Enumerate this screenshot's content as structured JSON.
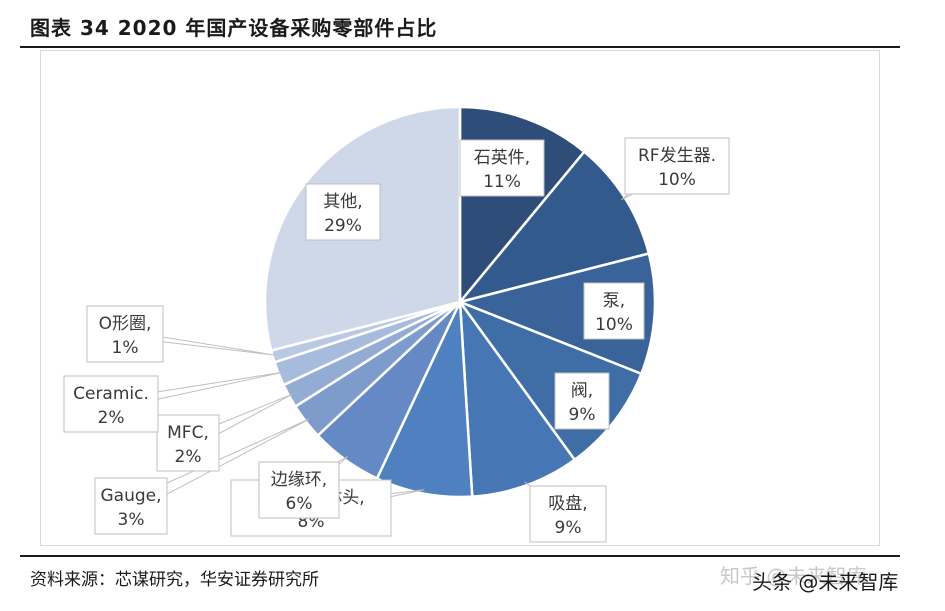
{
  "figure": {
    "title": "图表 34 2020 年国产设备采购零部件占比",
    "source": "资料来源：芯谋研究，华安证券研究所",
    "watermark_back": "知乎 @未来智库",
    "watermark_front": "头条 @未来智库"
  },
  "chart_data": {
    "type": "pie",
    "title": "",
    "start_angle_deg": 0,
    "direction": "clockwise",
    "slices": [
      {
        "name": "石英件",
        "value": 11,
        "label_line1": "石英件,",
        "label_line2": "11%",
        "color": "#2e4d78"
      },
      {
        "name": "RF发生器",
        "value": 10,
        "label_line1": "RF发生器.",
        "label_line2": "10%",
        "color": "#335a8c"
      },
      {
        "name": "泵",
        "value": 10,
        "label_line1": "泵,",
        "label_line2": "10%",
        "color": "#3a6499"
      },
      {
        "name": "阀",
        "value": 9,
        "label_line1": "阀,",
        "label_line2": "9%",
        "color": "#3f6ea7"
      },
      {
        "name": "吸盘",
        "value": 9,
        "label_line1": "吸盘,",
        "label_line2": "9%",
        "color": "#4677b4"
      },
      {
        "name": "反应腔喷淋头",
        "value": 8,
        "label_line1": "反应腔喷淋头,",
        "label_line2": "8%",
        "color": "#4f81c0"
      },
      {
        "name": "边缘环",
        "value": 6,
        "label_line1": "边缘环,",
        "label_line2": "6%",
        "color": "#6489c4"
      },
      {
        "name": "Gauge",
        "value": 3,
        "label_line1": "Gauge,",
        "label_line2": "3%",
        "color": "#7d9ccc"
      },
      {
        "name": "MFC",
        "value": 2,
        "label_line1": "MFC,",
        "label_line2": "2%",
        "color": "#93acd4"
      },
      {
        "name": "Ceramic",
        "value": 2,
        "label_line1": "Ceramic.",
        "label_line2": "2%",
        "color": "#a7bbdc"
      },
      {
        "name": "O形圈",
        "value": 1,
        "label_line1": "O形圈,",
        "label_line2": "1%",
        "color": "#b9c8e3"
      },
      {
        "name": "其他",
        "value": 29,
        "label_line1": "其他,",
        "label_line2": "29%",
        "color": "#cfd8e8"
      }
    ]
  }
}
